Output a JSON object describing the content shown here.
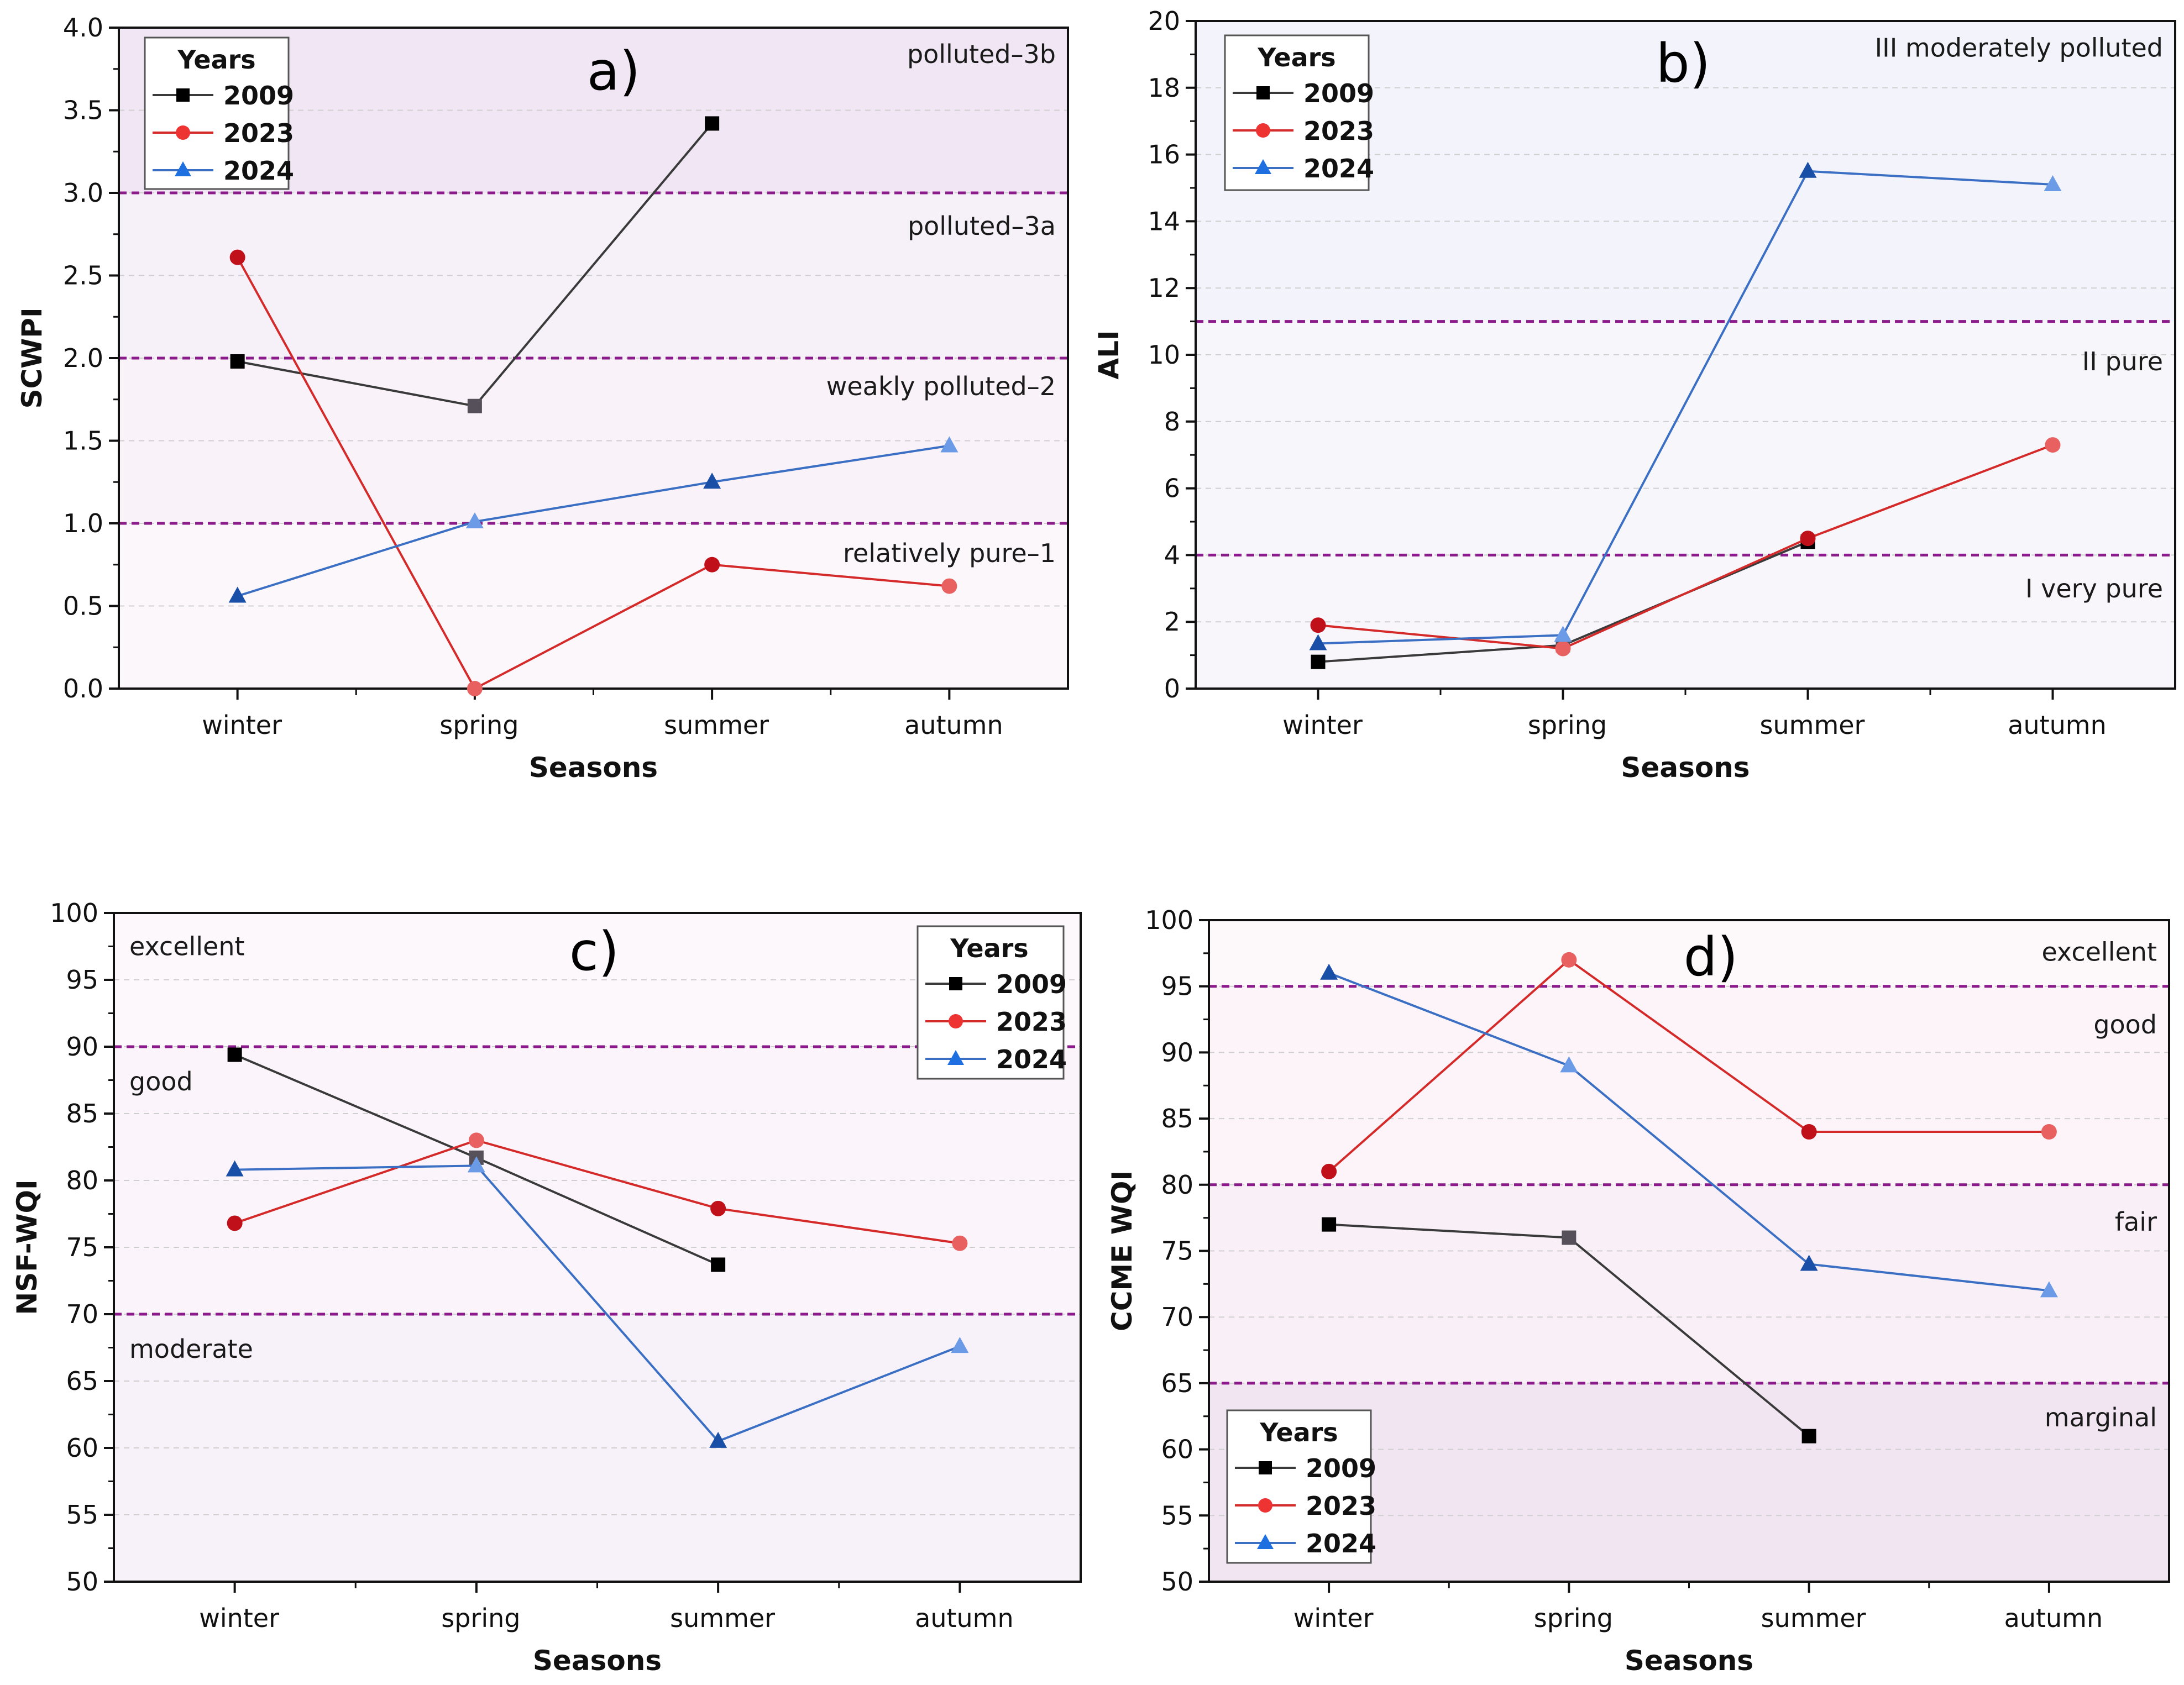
{
  "chart_data": [
    {
      "type": "line",
      "panel": "a)",
      "xlabel": "Seasons",
      "ylabel": "SCWPI",
      "categories": [
        "winter",
        "spring",
        "summer",
        "autumn"
      ],
      "ylim": [
        0,
        4.0
      ],
      "yticks": [
        "0.0",
        "0.5",
        "1.0",
        "1.5",
        "2.0",
        "2.5",
        "3.0",
        "3.5",
        "4.0"
      ],
      "legend": {
        "title": "Years",
        "position": "top-left"
      },
      "series": [
        {
          "name": "2009",
          "marker": "square",
          "color": "#3a3a3a",
          "values": [
            1.98,
            1.71,
            3.42,
            null
          ]
        },
        {
          "name": "2023",
          "marker": "circle",
          "color": "#d42a2a",
          "values": [
            2.61,
            0.0,
            0.75,
            0.62
          ]
        },
        {
          "name": "2024",
          "marker": "triangle",
          "color": "#3a6fc4",
          "values": [
            0.56,
            1.01,
            1.25,
            1.47
          ]
        }
      ],
      "thresholds": [
        1.0,
        2.0,
        3.0
      ],
      "zones": [
        {
          "label": "polluted–3b",
          "anchor": 3.84
        },
        {
          "label": "polluted–3a",
          "anchor": 2.8
        },
        {
          "label": "weakly polluted–2",
          "anchor": 1.83
        },
        {
          "label": "relatively pure–1",
          "anchor": 0.82
        }
      ]
    },
    {
      "type": "line",
      "panel": "b)",
      "xlabel": "Seasons",
      "ylabel": "ALI",
      "categories": [
        "winter",
        "spring",
        "summer",
        "autumn"
      ],
      "ylim": [
        0,
        20
      ],
      "yticks": [
        "0",
        "2",
        "4",
        "6",
        "8",
        "10",
        "12",
        "14",
        "16",
        "18",
        "20"
      ],
      "legend": {
        "title": "Years",
        "position": "top-left"
      },
      "series": [
        {
          "name": "2009",
          "marker": "square",
          "color": "#3a3a3a",
          "values": [
            0.8,
            1.3,
            4.4,
            null
          ]
        },
        {
          "name": "2023",
          "marker": "circle",
          "color": "#d42a2a",
          "values": [
            1.9,
            1.2,
            4.5,
            7.3
          ]
        },
        {
          "name": "2024",
          "marker": "triangle",
          "color": "#3a6fc4",
          "values": [
            1.35,
            1.6,
            15.5,
            15.1
          ]
        }
      ],
      "thresholds": [
        4,
        11
      ],
      "zones": [
        {
          "label": "III moderately polluted",
          "anchor": 19.2
        },
        {
          "label": "II pure",
          "anchor": 9.8
        },
        {
          "label": "I very pure",
          "anchor": 3.0
        }
      ]
    },
    {
      "type": "line",
      "panel": "c)",
      "xlabel": "Seasons",
      "ylabel": "NSF-WQI",
      "categories": [
        "winter",
        "spring",
        "summer",
        "autumn"
      ],
      "ylim": [
        50,
        100
      ],
      "yticks": [
        "50",
        "55",
        "60",
        "65",
        "70",
        "75",
        "80",
        "85",
        "90",
        "95",
        "100"
      ],
      "legend": {
        "title": "Years",
        "position": "top-right"
      },
      "series": [
        {
          "name": "2009",
          "marker": "square",
          "color": "#3a3a3a",
          "values": [
            89.4,
            81.7,
            73.7,
            null
          ]
        },
        {
          "name": "2023",
          "marker": "circle",
          "color": "#d42a2a",
          "values": [
            76.8,
            83.0,
            77.9,
            75.3
          ]
        },
        {
          "name": "2024",
          "marker": "triangle",
          "color": "#3a6fc4",
          "values": [
            80.8,
            81.1,
            60.5,
            67.6
          ]
        }
      ],
      "thresholds": [
        70,
        90
      ],
      "zones": [
        {
          "label": "excellent",
          "anchor": 97.5
        },
        {
          "label": "good",
          "anchor": 87.4
        },
        {
          "label": "moderate",
          "anchor": 67.4
        }
      ]
    },
    {
      "type": "line",
      "panel": "d)",
      "xlabel": "Seasons",
      "ylabel": "CCME WQI",
      "categories": [
        "winter",
        "spring",
        "summer",
        "autumn"
      ],
      "ylim": [
        50,
        100
      ],
      "yticks": [
        "50",
        "55",
        "60",
        "65",
        "70",
        "75",
        "80",
        "85",
        "90",
        "95",
        "100"
      ],
      "legend": {
        "title": "Years",
        "position": "bottom-left"
      },
      "series": [
        {
          "name": "2009",
          "marker": "square",
          "color": "#3a3a3a",
          "values": [
            77,
            76,
            61,
            null
          ]
        },
        {
          "name": "2023",
          "marker": "circle",
          "color": "#d42a2a",
          "values": [
            81,
            97,
            84,
            84
          ]
        },
        {
          "name": "2024",
          "marker": "triangle",
          "color": "#3a6fc4",
          "values": [
            96,
            89,
            74,
            72
          ]
        }
      ],
      "thresholds": [
        65,
        80,
        95
      ],
      "zones": [
        {
          "label": "excellent",
          "anchor": 97.6
        },
        {
          "label": "good",
          "anchor": 92.1
        },
        {
          "label": "fair",
          "anchor": 77.2
        },
        {
          "label": "marginal",
          "anchor": 62.4
        }
      ]
    }
  ]
}
